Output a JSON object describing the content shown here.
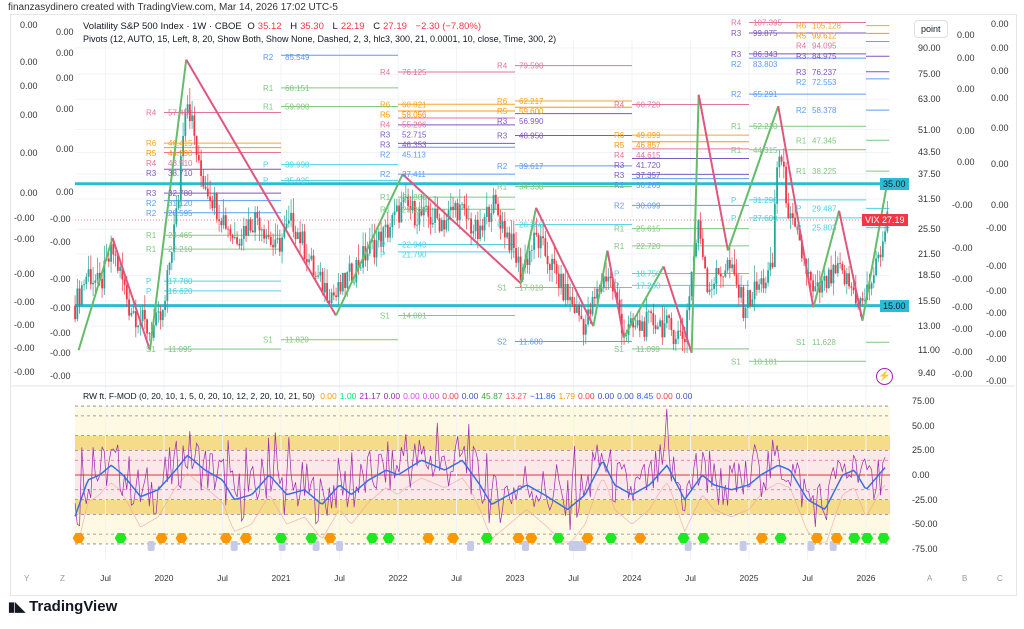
{
  "credit": "finanzasydinero created with TradingView.com, Mar 14, 2026 17:02 UTC-5",
  "legend": {
    "symbol": "Volatility S&P 500 Index · 1W · CBOE",
    "o_label": "O",
    "o": "35.12",
    "h_label": "H",
    "h": "35.30",
    "l_label": "L",
    "l": "22.19",
    "c_label": "C",
    "c": "27.19",
    "change": "−2.30 (−7.80%)",
    "pivots": "Pivots (12, AUTO, 15, Left, 8, 20, Show Both, Show None, Dashed, 2, 3, hlc3, 300, 21, 0.0001, 10, close, Time, 300, 2)"
  },
  "oscillator_legend": {
    "name": "RW ft. F-MOD (0, 20, 10, 1, 5, 0, 20, 10, 12, 2, 20, 10, 21, 50)",
    "values": [
      {
        "v": "0.00",
        "color": "#ff9800"
      },
      {
        "v": "1.00",
        "color": "#00e676"
      },
      {
        "v": "21.17",
        "color": "#9c27b0"
      },
      {
        "v": "0.00",
        "color": "#9c27b0"
      },
      {
        "v": "0.00",
        "color": "#e040fb"
      },
      {
        "v": "0.00",
        "color": "#e040fb"
      },
      {
        "v": "0.00",
        "color": "#f23645"
      },
      {
        "v": "0.00",
        "color": "#3f51b5"
      },
      {
        "v": "45.87",
        "color": "#43a047"
      },
      {
        "v": "13.27",
        "color": "#f7525f"
      },
      {
        "v": "−11.86",
        "color": "#2962ff"
      },
      {
        "v": "1.79",
        "color": "#ff9800"
      },
      {
        "v": "0.00",
        "color": "#f23645"
      },
      {
        "v": "0.00",
        "color": "#3f51b5"
      },
      {
        "v": "0.00",
        "color": "#3f51b5"
      },
      {
        "v": "8.45",
        "color": "#2962ff"
      },
      {
        "v": "0.00",
        "color": "#f23645"
      },
      {
        "v": "0.00",
        "color": "#3f51b5"
      }
    ]
  },
  "point_label": "point",
  "vix_tag": {
    "symbol": "VIX",
    "price": "27.19",
    "color": "#f23645"
  },
  "hlines": [
    {
      "label": "35.00",
      "value": 35
    },
    {
      "label": "15.00",
      "value": 15
    }
  ],
  "left_axis_1": [
    "0.00",
    "0.00",
    "0.00",
    "0.00",
    "0.00",
    "0.00",
    "-0.00",
    "-0.00",
    "-0.00",
    "-0.00",
    "-0.00",
    "-0.00",
    "-0.00"
  ],
  "left_axis_2": [
    "0.00",
    "0.00",
    "0.00",
    "0.00",
    "0.00",
    "0.00",
    "-0.00",
    "-0.00",
    "-0.00",
    "-0.00",
    "-0.00",
    "-0.00",
    "-0.00"
  ],
  "right_axis_2": [
    "0.00",
    "0.00",
    "0.00",
    "0.00",
    "0.00",
    "-0.00",
    "-0.00",
    "-0.00",
    "-0.00",
    "-0.00",
    "-0.00",
    "-0.00"
  ],
  "right_axis_3": [
    "0.00",
    "0.00",
    "0.00",
    "0.00",
    "0.00",
    "0.00",
    "0.00",
    "-0.00",
    "-0.00",
    "-0.00",
    "-0.00",
    "-0.00",
    "-0.00",
    "-0.00"
  ],
  "bottom_letters_left": [
    "Y",
    "Z"
  ],
  "bottom_letters_right": [
    "A",
    "B",
    "C"
  ],
  "logo": "TradingView",
  "colors": {
    "up": "#26a69a",
    "down": "#f23645",
    "cyan": "#2bbcd4",
    "zig_up": "#66bb6a",
    "zig_down": "#e0567e"
  },
  "chart_data": {
    "type": "candlestick",
    "title": "Volatility S&P 500 Index · 1W · CBOE",
    "price_scale": "log",
    "y_ticks": [
      "90.00",
      "75.00",
      "63.00",
      "51.00",
      "43.50",
      "37.50",
      "31.50",
      "25.50",
      "21.50",
      "18.50",
      "15.50",
      "13.00",
      "11.00",
      "9.40"
    ],
    "y_tick_values": [
      90,
      75,
      63,
      51,
      43.5,
      37.5,
      31.5,
      25.5,
      21.5,
      18.5,
      15.5,
      13,
      11,
      9.4
    ],
    "x_ticks": [
      {
        "t": 2019.5,
        "label": "Jul"
      },
      {
        "t": 2020,
        "label": "2020"
      },
      {
        "t": 2020.5,
        "label": "Jul"
      },
      {
        "t": 2021,
        "label": "2021"
      },
      {
        "t": 2021.5,
        "label": "Jul"
      },
      {
        "t": 2022,
        "label": "2022"
      },
      {
        "t": 2022.5,
        "label": "Jul"
      },
      {
        "t": 2023,
        "label": "2023"
      },
      {
        "t": 2023.5,
        "label": "Jul"
      },
      {
        "t": 2024,
        "label": "2024"
      },
      {
        "t": 2024.5,
        "label": "Jul"
      },
      {
        "t": 2025,
        "label": "2025"
      },
      {
        "t": 2025.5,
        "label": "Jul"
      },
      {
        "t": 2026,
        "label": "2026"
      }
    ],
    "time_range": [
      2019.24,
      2026.2
    ],
    "close_path": [
      [
        2019.24,
        15
      ],
      [
        2019.35,
        19
      ],
      [
        2019.45,
        17
      ],
      [
        2019.56,
        22
      ],
      [
        2019.7,
        15
      ],
      [
        2019.88,
        12.5
      ],
      [
        2020.0,
        14
      ],
      [
        2020.12,
        30
      ],
      [
        2020.19,
        66
      ],
      [
        2020.3,
        38
      ],
      [
        2020.45,
        30
      ],
      [
        2020.6,
        24
      ],
      [
        2020.8,
        28
      ],
      [
        2020.95,
        22
      ],
      [
        2021.1,
        27
      ],
      [
        2021.3,
        18
      ],
      [
        2021.47,
        16
      ],
      [
        2021.7,
        21
      ],
      [
        2021.9,
        25
      ],
      [
        2022.04,
        30
      ],
      [
        2022.2,
        28
      ],
      [
        2022.4,
        27
      ],
      [
        2022.5,
        30
      ],
      [
        2022.7,
        24
      ],
      [
        2022.8,
        31
      ],
      [
        2023.05,
        19
      ],
      [
        2023.18,
        24
      ],
      [
        2023.4,
        17
      ],
      [
        2023.6,
        13
      ],
      [
        2023.79,
        19
      ],
      [
        2023.93,
        12.5
      ],
      [
        2024.2,
        13.5
      ],
      [
        2024.45,
        12
      ],
      [
        2024.57,
        26
      ],
      [
        2024.65,
        17
      ],
      [
        2024.82,
        20
      ],
      [
        2024.95,
        15
      ],
      [
        2025.2,
        19
      ],
      [
        2025.25,
        45
      ],
      [
        2025.35,
        27
      ],
      [
        2025.55,
        16
      ],
      [
        2025.77,
        19
      ],
      [
        2025.97,
        15
      ],
      [
        2026.1,
        20
      ],
      [
        2026.18,
        27.19
      ]
    ],
    "zigzag": [
      [
        2019.27,
        11
      ],
      [
        2019.56,
        24
      ],
      [
        2019.88,
        11
      ],
      [
        2020.19,
        83
      ],
      [
        2021.47,
        14
      ],
      [
        2022.04,
        37.4
      ],
      [
        2023.05,
        17.5
      ],
      [
        2023.18,
        29.6
      ],
      [
        2023.67,
        13
      ],
      [
        2023.79,
        22
      ],
      [
        2023.93,
        12
      ],
      [
        2024.27,
        19.7
      ],
      [
        2024.51,
        10.8
      ],
      [
        2024.57,
        65
      ],
      [
        2024.82,
        22
      ],
      [
        2025.25,
        60
      ],
      [
        2025.55,
        14.8
      ],
      [
        2025.77,
        29
      ],
      [
        2025.97,
        13.5
      ],
      [
        2026.18,
        35
      ]
    ],
    "pivots": [
      {
        "start": 2020.0,
        "end": 2021.0,
        "levels": [
          [
            "R4",
            "57.450"
          ],
          [
            "R6",
            "46.415"
          ],
          [
            "R5",
            "44.990"
          ],
          [
            "R4",
            "43.510"
          ],
          [
            "R3",
            "38.710"
          ],
          [
            "R3",
            "32.780"
          ],
          [
            "R2",
            "31.120"
          ],
          [
            "R2",
            "28.595"
          ],
          [
            "R1",
            "24.465"
          ],
          [
            "R1",
            "22.210"
          ],
          [
            "P",
            "17.780"
          ],
          [
            "P",
            "16.620"
          ],
          [
            "S1",
            "11.095"
          ]
        ]
      },
      {
        "start": 2021.0,
        "end": 2022.0,
        "levels": [
          [
            "R2",
            "85.549"
          ],
          [
            "R1",
            "68.151"
          ],
          [
            "R1",
            "59.900"
          ],
          [
            "P",
            "39.990"
          ],
          [
            "P",
            "35.825"
          ],
          [
            "S1",
            "11.829"
          ]
        ]
      },
      {
        "start": 2022.0,
        "end": 2023.0,
        "levels": [
          [
            "R4",
            "76.125"
          ],
          [
            "R6",
            "60.821"
          ],
          [
            "R5",
            "58.056"
          ],
          [
            "R4",
            "55.296"
          ],
          [
            "R3",
            "52.715"
          ],
          [
            "R3",
            "46.353"
          ],
          [
            "R2",
            "45.113"
          ],
          [
            "R2",
            "37.411"
          ],
          [
            "R1",
            "31.880"
          ],
          [
            "R1",
            "29.305"
          ],
          [
            "P",
            "22.940"
          ],
          [
            "P",
            "21.790"
          ],
          [
            "S1",
            "14.001"
          ]
        ]
      },
      {
        "start": 2023.0,
        "end": 2024.0,
        "levels": [
          [
            "R4",
            "79.590"
          ],
          [
            "R6",
            "62.217"
          ],
          [
            "R5",
            "59.600"
          ],
          [
            "R3",
            "56.990"
          ],
          [
            "R3",
            "48.950"
          ],
          [
            "R2",
            "39.617"
          ],
          [
            "R1",
            "34.330"
          ],
          [
            "P",
            "26.350"
          ],
          [
            "S1",
            "17.010"
          ],
          [
            "S2",
            "11.680"
          ]
        ]
      },
      {
        "start": 2024.0,
        "end": 2025.0,
        "levels": [
          [
            "R4",
            "60.720"
          ],
          [
            "R6",
            "49.099"
          ],
          [
            "R5",
            "46.857"
          ],
          [
            "R4",
            "44.615"
          ],
          [
            "R3",
            "41.720"
          ],
          [
            "R3",
            "37.357"
          ],
          [
            "R2",
            "36.265"
          ],
          [
            "R2",
            "30.099"
          ],
          [
            "R1",
            "25.615"
          ],
          [
            "R1",
            "22.720"
          ],
          [
            "P",
            "18.750"
          ],
          [
            "P",
            "17.260"
          ],
          [
            "S1",
            "11.099"
          ]
        ]
      },
      {
        "start": 2025.0,
        "end": 2026.0,
        "levels": [
          [
            "R4",
            "107.395"
          ],
          [
            "R3",
            "99.875"
          ],
          [
            "R3",
            "86.343"
          ],
          [
            "R2",
            "83.803"
          ],
          [
            "R2",
            "65.291"
          ],
          [
            "R1",
            "52.210"
          ],
          [
            "R1",
            "44.315"
          ],
          [
            "P",
            "31.290"
          ],
          [
            "P",
            "27.600"
          ],
          [
            "S1",
            "10.181"
          ]
        ]
      },
      {
        "start": 2026.0,
        "end": 2026.2,
        "levels": [
          [
            "R6",
            "105.128"
          ],
          [
            "R5",
            "99.612"
          ],
          [
            "R4",
            "94.095"
          ],
          [
            "R3",
            "84.975"
          ],
          [
            "R3",
            "76.237"
          ],
          [
            "R2",
            "72.553"
          ],
          [
            "R2",
            "58.378"
          ],
          [
            "R1",
            "47.345"
          ],
          [
            "R1",
            "38.225"
          ],
          [
            "P",
            "29.487"
          ],
          [
            "P",
            "25.803"
          ],
          [
            "S1",
            "11.628"
          ]
        ]
      }
    ],
    "level_colors": {
      "R6": "#f5a623",
      "R5": "#ff9800",
      "R4": "#e57399",
      "R3": "#7e57c2",
      "R2": "#5b9cf6",
      "R1": "#81c784",
      "P": "#4dd0e1",
      "S1": "#81c784",
      "S2": "#5b9cf6"
    },
    "oscillator": {
      "y_ticks": [
        "75.00",
        "50.00",
        "25.00",
        "0.00",
        "-25.00",
        "-50.00",
        "-75.00"
      ],
      "y_tick_values": [
        75,
        50,
        25,
        0,
        -25,
        -50,
        -75
      ],
      "ylim": [
        -80,
        80
      ],
      "dashed_levels": [
        70,
        60,
        40,
        25,
        15,
        -15,
        -25,
        -40,
        -60,
        -70
      ],
      "bands": [
        {
          "from": 25,
          "to": 40,
          "color": "#f5dc8a"
        },
        {
          "from": -40,
          "to": -25,
          "color": "#f5dc8a"
        },
        {
          "from": -25,
          "to": 25,
          "color": "#fbe9e9"
        },
        {
          "from": 40,
          "to": 70,
          "color": "#fdf9e3"
        },
        {
          "from": -70,
          "to": -40,
          "color": "#fdf9e3"
        }
      ],
      "blue_line": [
        [
          2019.24,
          -42
        ],
        [
          2019.35,
          -5
        ],
        [
          2019.45,
          0
        ],
        [
          2019.55,
          10
        ],
        [
          2019.65,
          0
        ],
        [
          2019.8,
          -22
        ],
        [
          2019.95,
          -15
        ],
        [
          2020.1,
          5
        ],
        [
          2020.2,
          20
        ],
        [
          2020.35,
          5
        ],
        [
          2020.5,
          -5
        ],
        [
          2020.6,
          -25
        ],
        [
          2020.75,
          -20
        ],
        [
          2020.9,
          0
        ],
        [
          2021.05,
          -20
        ],
        [
          2021.2,
          -15
        ],
        [
          2021.35,
          -30
        ],
        [
          2021.5,
          -10
        ],
        [
          2021.6,
          -20
        ],
        [
          2021.75,
          -5
        ],
        [
          2021.9,
          5
        ],
        [
          2022.0,
          0
        ],
        [
          2022.2,
          15
        ],
        [
          2022.4,
          5
        ],
        [
          2022.55,
          15
        ],
        [
          2022.7,
          -10
        ],
        [
          2022.8,
          -30
        ],
        [
          2022.95,
          -20
        ],
        [
          2023.1,
          -10
        ],
        [
          2023.25,
          -20
        ],
        [
          2023.45,
          -35
        ],
        [
          2023.6,
          -20
        ],
        [
          2023.75,
          15
        ],
        [
          2023.85,
          -10
        ],
        [
          2024.0,
          -20
        ],
        [
          2024.15,
          -10
        ],
        [
          2024.3,
          10
        ],
        [
          2024.45,
          -25
        ],
        [
          2024.6,
          0
        ],
        [
          2024.7,
          -10
        ],
        [
          2024.85,
          -15
        ],
        [
          2025.0,
          -10
        ],
        [
          2025.1,
          0
        ],
        [
          2025.25,
          10
        ],
        [
          2025.35,
          5
        ],
        [
          2025.5,
          -25
        ],
        [
          2025.65,
          -35
        ],
        [
          2025.8,
          0
        ],
        [
          2025.9,
          5
        ],
        [
          2026.0,
          -15
        ],
        [
          2026.18,
          10
        ]
      ],
      "green_markers": [
        2019.63,
        2021.0,
        2021.26,
        2021.78,
        2021.92,
        2022.76,
        2023.37,
        2023.82,
        2024.44,
        2024.61,
        2025.27,
        2025.9,
        2026.01,
        2026.15
      ],
      "orange_markers": [
        2019.27,
        2019.98,
        2020.15,
        2020.53,
        2020.7,
        2021.42,
        2022.26,
        2022.47,
        2023.03,
        2023.14,
        2023.62,
        2024.07,
        2025.11,
        2025.58,
        2025.75
      ],
      "lavender_markers": [
        2019.89,
        2020.6,
        2021.01,
        2021.3,
        2021.5,
        2022.62,
        2023.09,
        2023.49,
        2023.53,
        2023.58,
        2024.48,
        2024.95,
        2025.53,
        2025.72
      ]
    }
  }
}
